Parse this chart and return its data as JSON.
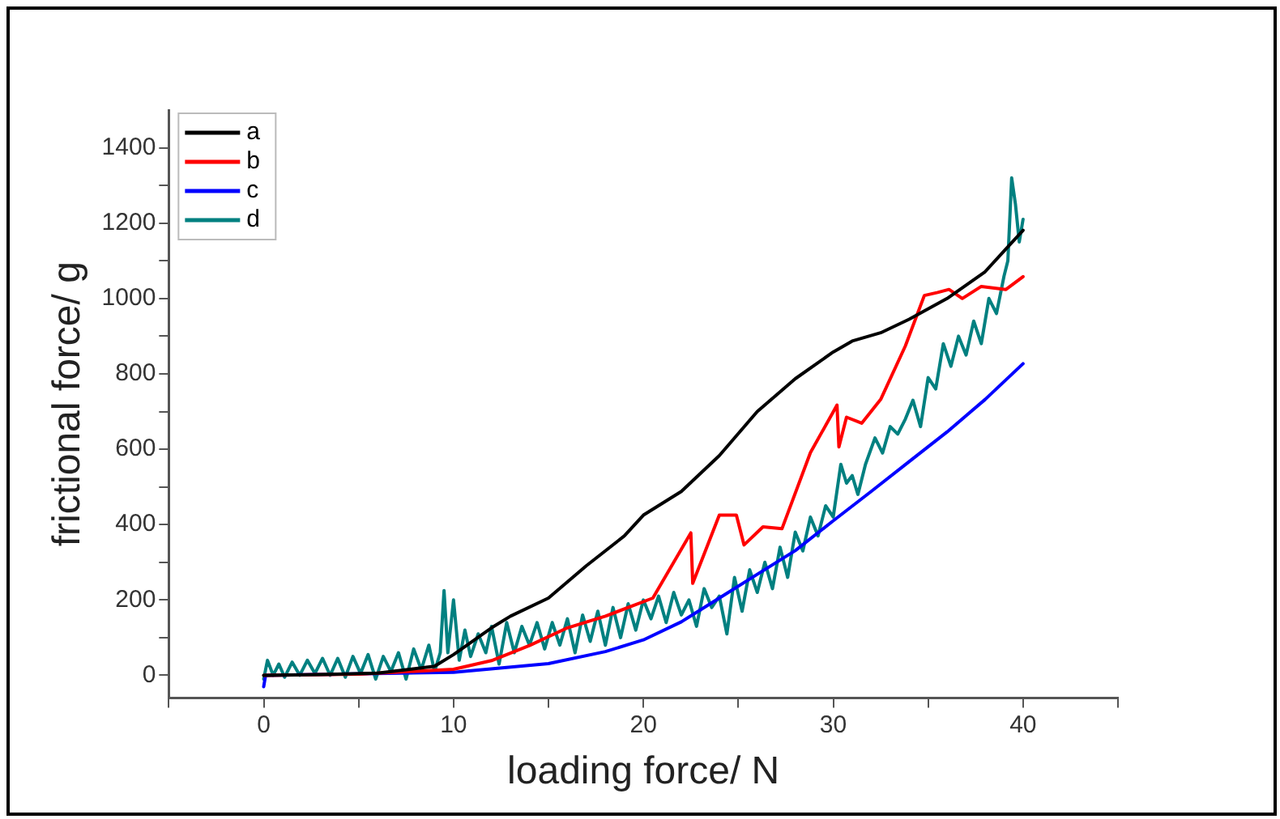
{
  "chart_data": {
    "type": "line",
    "xlabel": "loading force/ N",
    "ylabel": "frictional force/ g",
    "xlim": [
      -5,
      45
    ],
    "xticks": [
      {
        "value": -5,
        "label": null
      },
      0,
      {
        "value": 5,
        "label": null
      },
      10,
      {
        "value": 15,
        "label": null
      },
      20,
      {
        "value": 25,
        "label": null
      },
      30,
      {
        "value": 35,
        "label": null
      },
      40,
      {
        "value": 45,
        "label": null
      }
    ],
    "ylim": [
      -60,
      1500
    ],
    "yticks": [
      0,
      {
        "value": 100,
        "label": null
      },
      200,
      {
        "value": 300,
        "label": null
      },
      400,
      {
        "value": 500,
        "label": null
      },
      600,
      {
        "value": 700,
        "label": null
      },
      800,
      {
        "value": 900,
        "label": null
      },
      1000,
      {
        "value": 1100,
        "label": null
      },
      1200,
      {
        "value": 1300,
        "label": null
      },
      1400
    ],
    "grid": false,
    "legend": "top left",
    "marker": "none",
    "line_style": "solid",
    "series": [
      {
        "name": "a",
        "color": "#000000",
        "x": [
          0,
          3,
          6,
          9,
          10,
          12,
          13,
          15,
          17,
          19,
          20,
          22,
          24,
          26,
          28,
          30,
          31,
          32.5,
          34,
          36,
          38,
          39,
          40
        ],
        "values": [
          0,
          2,
          6,
          24,
          55,
          126,
          157,
          205,
          291,
          370,
          425,
          488,
          583,
          700,
          787,
          858,
          887,
          909,
          945,
          1000,
          1071,
          1126,
          1181
        ]
      },
      {
        "name": "b",
        "color": "#ff0000",
        "x": [
          0,
          5,
          10,
          12,
          14,
          16,
          18,
          20.5,
          22.5,
          22.6,
          24,
          24.9,
          25.3,
          26.3,
          27.3,
          28.8,
          30.2,
          30.3,
          30.7,
          31.5,
          32.5,
          33.8,
          34.8,
          35.5,
          36.1,
          36.8,
          37.8,
          39.1,
          40
        ],
        "values": [
          0,
          3,
          16,
          39,
          79,
          126,
          157,
          205,
          378,
          244,
          425,
          425,
          346,
          394,
          389,
          591,
          717,
          606,
          685,
          669,
          732,
          874,
          1008,
          1016,
          1024,
          1000,
          1032,
          1024,
          1058
        ]
      },
      {
        "name": "c",
        "color": "#0000ff",
        "x": [
          0,
          0.1,
          10,
          15,
          18,
          20,
          22,
          24,
          26,
          28,
          30,
          32,
          34,
          36,
          38,
          40
        ],
        "values": [
          -30,
          0,
          8,
          31,
          63,
          94,
          142,
          205,
          268,
          331,
          410,
          488,
          567,
          646,
          732,
          827
        ]
      },
      {
        "name": "d",
        "color": "#008080",
        "x": [
          0,
          0.2,
          0.5,
          0.8,
          1.1,
          1.5,
          1.9,
          2.3,
          2.7,
          3.1,
          3.5,
          3.9,
          4.3,
          4.7,
          5.1,
          5.5,
          5.9,
          6.3,
          6.7,
          7.1,
          7.5,
          7.9,
          8.3,
          8.7,
          9.0,
          9.3,
          9.5,
          9.7,
          10.0,
          10.3,
          10.6,
          10.9,
          11.3,
          11.7,
          12.0,
          12.4,
          12.8,
          13.2,
          13.6,
          14.0,
          14.4,
          14.8,
          15.2,
          15.6,
          16.0,
          16.4,
          16.8,
          17.2,
          17.6,
          18.0,
          18.4,
          18.8,
          19.2,
          19.6,
          20.0,
          20.4,
          20.8,
          21.2,
          21.6,
          22.0,
          22.4,
          22.8,
          23.2,
          23.6,
          24.0,
          24.4,
          24.8,
          25.2,
          25.6,
          26.0,
          26.4,
          26.8,
          27.2,
          27.6,
          28.0,
          28.4,
          28.8,
          29.2,
          29.6,
          30.0,
          30.4,
          30.7,
          31.0,
          31.3,
          31.7,
          32.2,
          32.6,
          33.0,
          33.4,
          33.8,
          34.2,
          34.6,
          35.0,
          35.4,
          35.8,
          36.2,
          36.6,
          37.0,
          37.4,
          37.8,
          38.2,
          38.6,
          39.0,
          39.2,
          39.4,
          39.6,
          39.8,
          40.0
        ],
        "values": [
          -10,
          40,
          0,
          30,
          -5,
          35,
          0,
          40,
          5,
          45,
          0,
          45,
          -5,
          50,
          5,
          55,
          -10,
          50,
          10,
          60,
          -10,
          70,
          15,
          80,
          10,
          60,
          225,
          60,
          200,
          40,
          120,
          50,
          110,
          60,
          130,
          30,
          140,
          60,
          130,
          80,
          140,
          70,
          140,
          80,
          150,
          60,
          160,
          90,
          170,
          80,
          180,
          100,
          190,
          120,
          200,
          150,
          210,
          140,
          220,
          160,
          200,
          130,
          230,
          180,
          210,
          110,
          260,
          170,
          280,
          220,
          300,
          230,
          340,
          260,
          380,
          330,
          420,
          370,
          450,
          420,
          560,
          510,
          530,
          480,
          560,
          630,
          590,
          660,
          640,
          680,
          730,
          660,
          790,
          760,
          880,
          820,
          900,
          850,
          940,
          880,
          1000,
          960,
          1060,
          1100,
          1320,
          1250,
          1150,
          1210
        ]
      }
    ]
  }
}
